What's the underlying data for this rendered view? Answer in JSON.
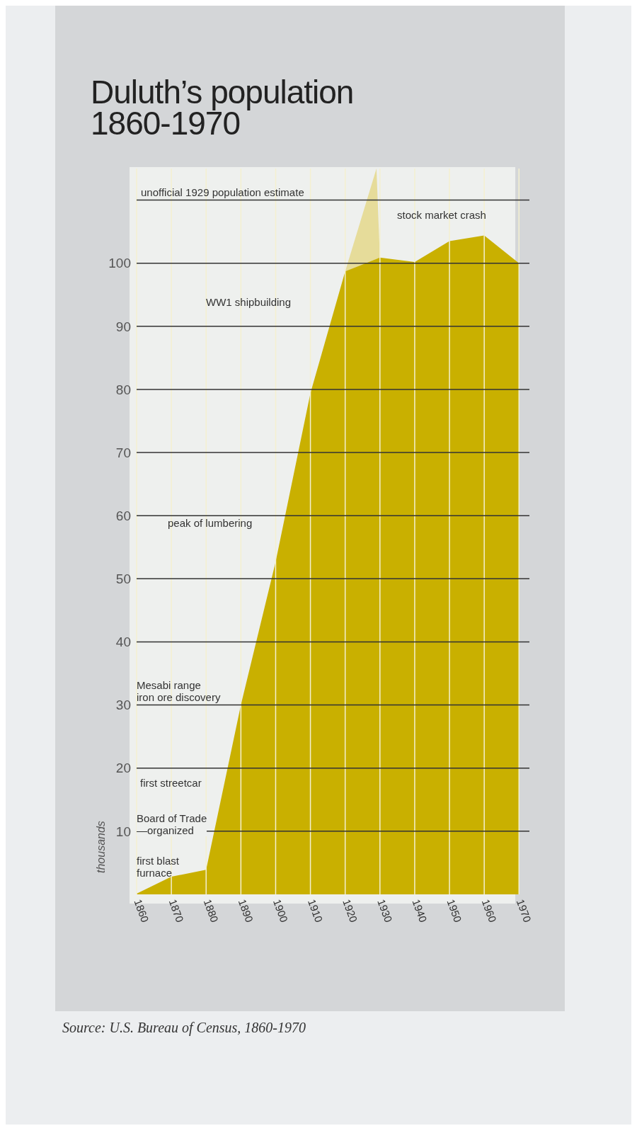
{
  "chart_data": {
    "type": "area",
    "title": "Duluth’s population\n1860-1970",
    "ylabel": "thousands",
    "x": [
      1860,
      1870,
      1880,
      1890,
      1900,
      1910,
      1920,
      1930,
      1940,
      1950,
      1960,
      1970
    ],
    "series": [
      {
        "color": "#e6dc9a",
        "x": [
          1920,
          1929,
          1930
        ],
        "values": [
          98.7,
          115,
          100.9
        ]
      },
      {
        "color": "#c9b000",
        "values": [
          0.1,
          2.8,
          3.9,
          30,
          52.7,
          79.4,
          98.7,
          100.9,
          100.2,
          103.5,
          104.4,
          100
        ]
      }
    ],
    "xlim": [
      1860,
      1973
    ],
    "xticks": [
      1860,
      1870,
      1880,
      1890,
      1900,
      1910,
      1920,
      1930,
      1940,
      1950,
      1960,
      1970
    ],
    "ylim": [
      0,
      115
    ],
    "yticks": [
      10,
      20,
      30,
      40,
      50,
      60,
      70,
      80,
      90,
      100
    ],
    "grid": true,
    "ref_lines": [
      {
        "axis": "y",
        "value": 110,
        "label": "unofficial 1929 population estimate"
      }
    ],
    "annotations": [
      "stock market crash",
      "WW1 shipbuilding",
      "peak of lumbering",
      "Mesabi range\niron ore discovery",
      "first streetcar",
      "Board of Trade\n—organized",
      "first blast\nfurnace",
      "Source: U.S. Bureau of Census, 1860-1970"
    ]
  }
}
